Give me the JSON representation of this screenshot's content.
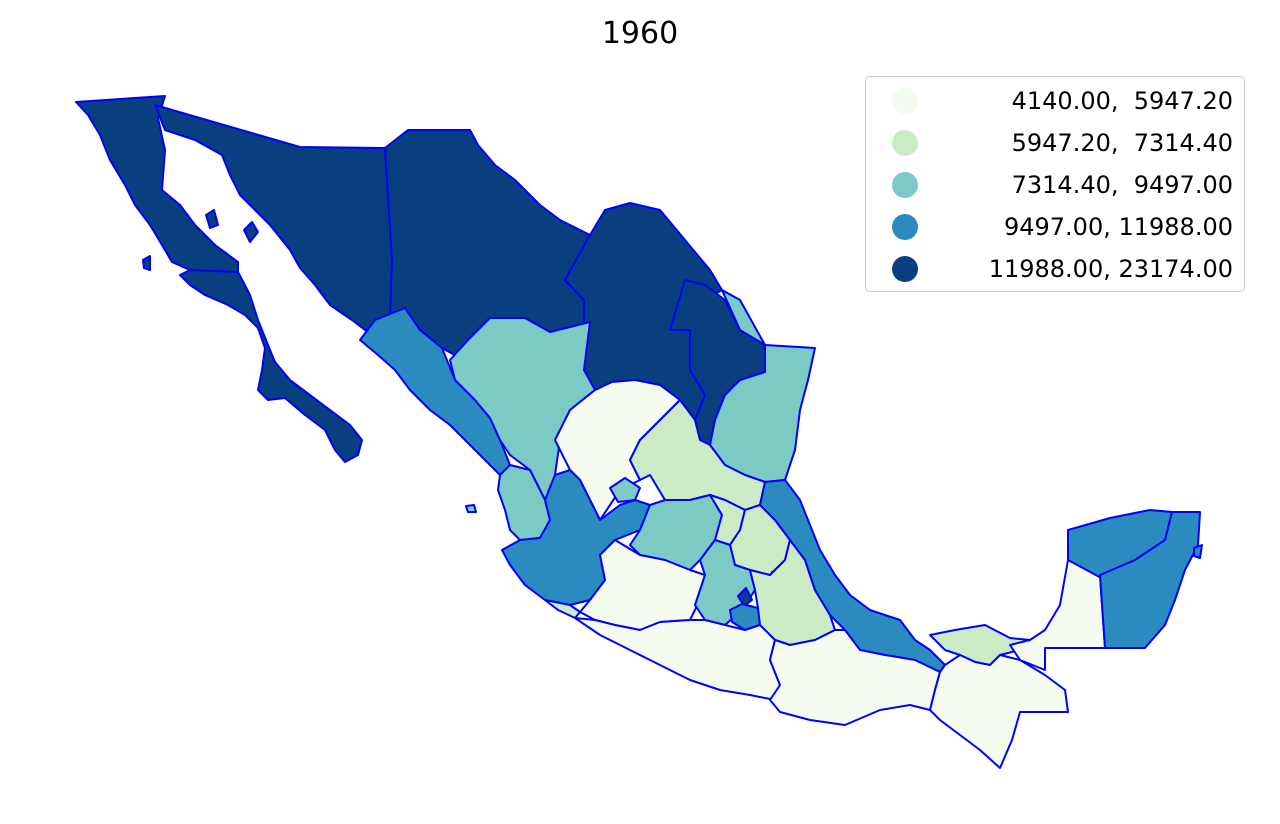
{
  "title": "1960",
  "colors": {
    "c1": "#f4fbef",
    "c2": "#cbebc5",
    "c3": "#7bcbc4",
    "c4": "#2b8bbe",
    "c5": "#0a3f7f",
    "border": "#0000ff"
  },
  "legend": [
    {
      "label": "  4140.00,  5947.20",
      "color": "#f4fbef"
    },
    {
      "label": "  5947.20,  7314.40",
      "color": "#cbebc5"
    },
    {
      "label": "  7314.40,  9497.00",
      "color": "#7bcbc4"
    },
    {
      "label": "  9497.00, 11988.00",
      "color": "#2b8bbe"
    },
    {
      "label": "11988.00, 23174.00",
      "color": "#0a3f7f"
    }
  ]
}
